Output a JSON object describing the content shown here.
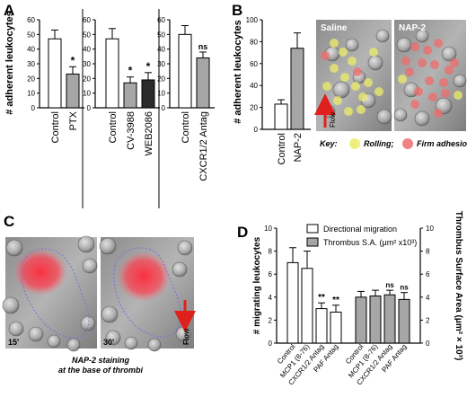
{
  "panel_letters": [
    "A",
    "B",
    "C",
    "D"
  ],
  "colors": {
    "white_bar": "#ffffff",
    "gray_bar": "#a6a6a6",
    "black_bar": "#2b2b2b",
    "rolling": "#ecec6a",
    "firm": "#f06b6b",
    "flow_arrow": "#e0201c"
  },
  "chart_data": [
    {
      "panel": "A",
      "type": "bar",
      "ylabel": "# adherent leukocytes",
      "ylim": [
        0,
        60
      ],
      "yticks": [
        0,
        10,
        20,
        30,
        40,
        50,
        60
      ],
      "groups": [
        {
          "categories": [
            "Control",
            "PTX"
          ],
          "values": [
            47,
            23
          ],
          "errors": [
            6,
            5
          ],
          "fills": [
            "white",
            "gray"
          ],
          "annotations": [
            "",
            "*"
          ]
        },
        {
          "categories": [
            "Control",
            "CV-3988",
            "WEB2086"
          ],
          "values": [
            47,
            17,
            19
          ],
          "errors": [
            7,
            4,
            5
          ],
          "fills": [
            "white",
            "gray",
            "black"
          ],
          "annotations": [
            "",
            "*",
            "*"
          ]
        },
        {
          "categories": [
            "Control",
            "CXCR1/2 Antag"
          ],
          "values": [
            50,
            34
          ],
          "errors": [
            6,
            4
          ],
          "fills": [
            "white",
            "gray"
          ],
          "annotations": [
            "",
            "ns"
          ]
        }
      ]
    },
    {
      "panel": "B",
      "type": "bar",
      "ylabel": "# adherent leukocytes",
      "ylim": [
        0,
        100
      ],
      "yticks": [
        0,
        20,
        40,
        60,
        80,
        100
      ],
      "categories": [
        "Control",
        "NAP-2"
      ],
      "values": [
        23,
        74
      ],
      "errors": [
        4,
        14
      ],
      "fills": [
        "white",
        "gray"
      ]
    },
    {
      "panel": "D",
      "type": "bar",
      "ylabel": "# migrating leukocytes",
      "y2label": "Thrombus Surface Area (μm² × 10³)",
      "ylim": [
        0,
        10
      ],
      "yticks": [
        0,
        2,
        4,
        6,
        8,
        10
      ],
      "y2ticks": [
        0,
        2,
        4,
        6,
        8,
        10
      ],
      "categories": [
        "Control",
        "MCP1 (8-76)",
        "CXCR1/2 Antag",
        "PAF Antag"
      ],
      "legend": [
        "Directional migration",
        "Thrombus S.A. (μm² x10³)"
      ],
      "series": [
        {
          "name": "Directional migration",
          "values": [
            7.0,
            6.5,
            3.0,
            2.7
          ],
          "errors": [
            1.3,
            1.5,
            0.5,
            0.6
          ],
          "annotations": [
            "",
            "",
            "**",
            "**"
          ]
        },
        {
          "name": "Thrombus S.A. (μm² x10³)",
          "values": [
            4.0,
            4.1,
            4.2,
            3.8
          ],
          "errors": [
            0.5,
            0.5,
            0.4,
            0.6
          ],
          "annotations": [
            "",
            "",
            "ns",
            "ns"
          ]
        }
      ]
    }
  ],
  "panel_b_images": {
    "saline_label": "Saline",
    "nap2_label": "NAP-2",
    "flow_label": "Flow",
    "key_label": "Key:",
    "rolling_label": "Rolling;",
    "firm_label": "Firm adhesion"
  },
  "panel_c": {
    "time_left": "15'",
    "time_right": "30'",
    "flow_label": "Flow",
    "caption_line1": "NAP-2 staining",
    "caption_line2": "at the base of thrombi"
  }
}
